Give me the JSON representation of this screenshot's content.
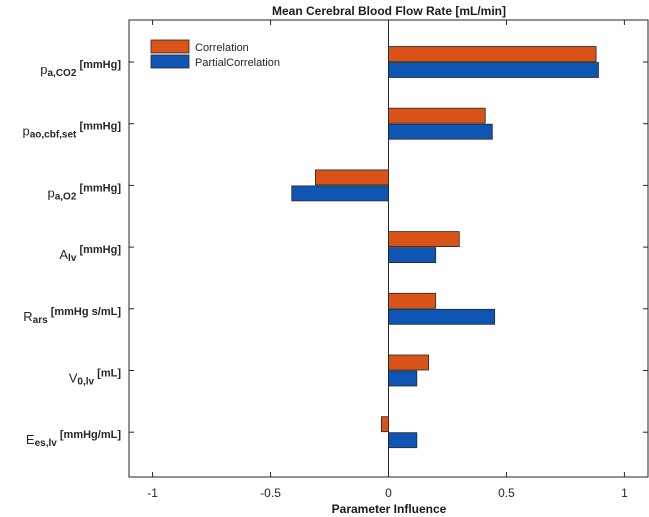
{
  "chart_data": {
    "type": "bar",
    "orientation": "horizontal",
    "title": "Mean Cerebral Blood Flow Rate [mL/min]",
    "xlabel": "Parameter Influence",
    "ylabel": "",
    "xlim": [
      -1.1,
      1.1
    ],
    "xticks": [
      -1,
      -0.5,
      0,
      0.5,
      1
    ],
    "xtick_labels": [
      "-1",
      "-0.5",
      "0",
      "0.5",
      "1"
    ],
    "grid": false,
    "legend_position": "top-left",
    "categories": [
      {
        "main": "p",
        "sub": "a,CO2",
        "unit": "[mmHg]"
      },
      {
        "main": "p",
        "sub": "ao,cbf,set",
        "unit": "[mmHg]"
      },
      {
        "main": "p",
        "sub": "a,O2",
        "unit": "[mmHg]"
      },
      {
        "main": "A",
        "sub": "lv",
        "unit": "[mmHg]"
      },
      {
        "main": "R",
        "sub": "ars",
        "unit": "[mmHg s/mL]"
      },
      {
        "main": "V",
        "sub": "0,lv",
        "unit": "[mL]"
      },
      {
        "main": "E",
        "sub": "es,lv",
        "unit": "[mmHg/mL]"
      }
    ],
    "series": [
      {
        "name": "Correlation",
        "color": "#D95319",
        "values": [
          0.88,
          0.41,
          -0.31,
          0.3,
          0.2,
          0.17,
          -0.03
        ]
      },
      {
        "name": "PartialCorrelation",
        "color": "#0F55B4",
        "values": [
          0.89,
          0.44,
          -0.41,
          0.2,
          0.45,
          0.12,
          0.12
        ]
      }
    ]
  }
}
